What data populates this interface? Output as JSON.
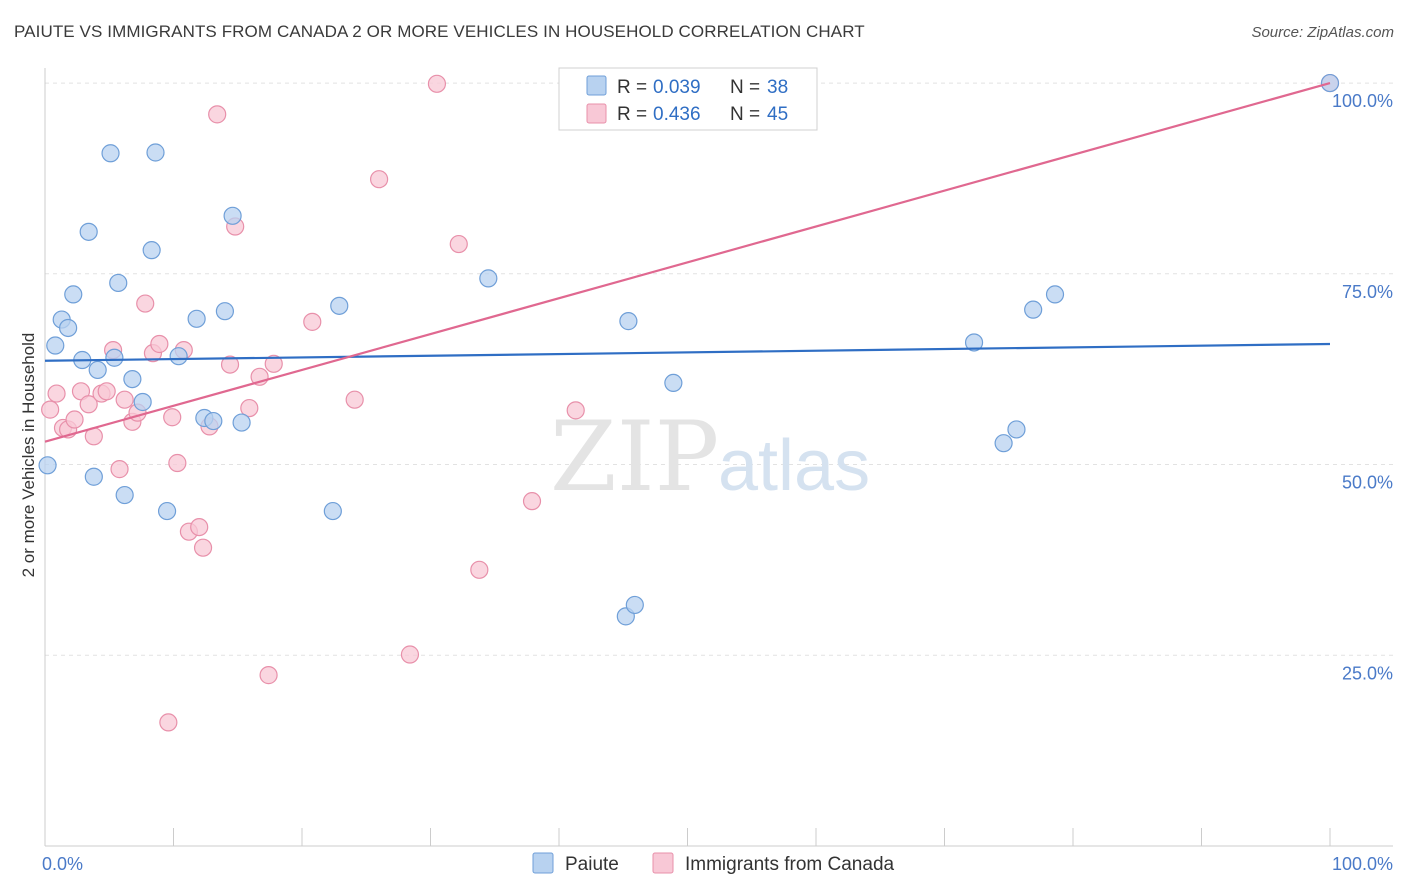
{
  "title": "PAIUTE VS IMMIGRANTS FROM CANADA 2 OR MORE VEHICLES IN HOUSEHOLD CORRELATION CHART",
  "source": "Source: ZipAtlas.com",
  "watermark": {
    "zip": "ZIP",
    "atlas": "atlas"
  },
  "colors": {
    "paiute_fill": "#b8d2f0",
    "paiute_stroke": "#6f9fd8",
    "paiute_line": "#2f6ec4",
    "canada_fill": "#f8c8d6",
    "canada_stroke": "#e890aa",
    "canada_line": "#e06890",
    "tick_label": "#4a7ac8",
    "grid": "#e2e2e2"
  },
  "legend": {
    "rows": [
      {
        "r_label": "R =",
        "r_value": "0.039",
        "n_label": "N =",
        "n_value": "38"
      },
      {
        "r_label": "R =",
        "r_value": "0.436",
        "n_label": "N =",
        "n_value": "45"
      }
    ]
  },
  "chart_data": {
    "type": "scatter",
    "title": "PAIUTE VS IMMIGRANTS FROM CANADA 2 OR MORE VEHICLES IN HOUSEHOLD CORRELATION CHART",
    "xlabel": "",
    "ylabel": "2 or more Vehicles in Household",
    "xlim": [
      0,
      100
    ],
    "ylim": [
      0,
      102.5
    ],
    "x_tick_labels": [
      "0.0%",
      "100.0%"
    ],
    "y_ticks": [
      25,
      50,
      75,
      100
    ],
    "y_tick_labels": [
      "25.0%",
      "50.0%",
      "75.0%",
      "100.0%"
    ],
    "grid": true,
    "legend_position": "top-center",
    "series": [
      {
        "name": "Paiute",
        "trend": {
          "x": [
            0,
            100
          ],
          "y": [
            63.6,
            65.8
          ]
        },
        "points": [
          [
            0.2,
            49.9
          ],
          [
            0.8,
            65.6
          ],
          [
            1.3,
            69.0
          ],
          [
            1.8,
            67.9
          ],
          [
            2.2,
            72.3
          ],
          [
            2.9,
            63.7
          ],
          [
            3.4,
            80.5
          ],
          [
            3.8,
            48.4
          ],
          [
            4.1,
            62.4
          ],
          [
            5.1,
            90.8
          ],
          [
            5.4,
            64.0
          ],
          [
            5.7,
            73.8
          ],
          [
            6.2,
            46.0
          ],
          [
            6.8,
            61.2
          ],
          [
            7.6,
            58.2
          ],
          [
            8.3,
            78.1
          ],
          [
            8.6,
            90.9
          ],
          [
            9.5,
            43.9
          ],
          [
            10.4,
            64.2
          ],
          [
            11.8,
            69.1
          ],
          [
            12.4,
            56.1
          ],
          [
            13.1,
            55.7
          ],
          [
            14.0,
            70.1
          ],
          [
            14.6,
            82.6
          ],
          [
            15.3,
            55.5
          ],
          [
            22.4,
            43.9
          ],
          [
            22.9,
            70.8
          ],
          [
            34.5,
            74.4
          ],
          [
            45.2,
            30.1
          ],
          [
            45.9,
            31.6
          ],
          [
            45.4,
            68.8
          ],
          [
            48.9,
            60.7
          ],
          [
            72.3,
            66.0
          ],
          [
            74.6,
            52.8
          ],
          [
            75.6,
            54.6
          ],
          [
            76.9,
            70.3
          ],
          [
            78.6,
            72.3
          ],
          [
            100.0,
            100.0
          ]
        ]
      },
      {
        "name": "Immigrants from Canada",
        "trend": {
          "x": [
            0,
            100
          ],
          "y": [
            53.0,
            100.0
          ]
        },
        "points": [
          [
            0.4,
            57.2
          ],
          [
            0.9,
            59.3
          ],
          [
            1.4,
            54.8
          ],
          [
            1.8,
            54.6
          ],
          [
            2.3,
            55.9
          ],
          [
            2.8,
            59.6
          ],
          [
            3.4,
            57.9
          ],
          [
            3.8,
            53.7
          ],
          [
            4.4,
            59.3
          ],
          [
            4.8,
            59.6
          ],
          [
            5.3,
            65.0
          ],
          [
            5.8,
            49.4
          ],
          [
            6.2,
            58.5
          ],
          [
            6.8,
            55.6
          ],
          [
            7.2,
            56.8
          ],
          [
            7.8,
            71.1
          ],
          [
            8.4,
            64.6
          ],
          [
            8.9,
            65.8
          ],
          [
            9.6,
            16.2
          ],
          [
            9.9,
            56.2
          ],
          [
            10.3,
            50.2
          ],
          [
            10.8,
            65.0
          ],
          [
            11.2,
            41.2
          ],
          [
            12.0,
            41.8
          ],
          [
            12.3,
            39.1
          ],
          [
            12.8,
            55.0
          ],
          [
            13.4,
            95.9
          ],
          [
            14.4,
            63.1
          ],
          [
            14.8,
            81.2
          ],
          [
            15.9,
            57.4
          ],
          [
            16.7,
            61.5
          ],
          [
            17.4,
            22.4
          ],
          [
            17.8,
            63.2
          ],
          [
            20.8,
            68.7
          ],
          [
            24.1,
            58.5
          ],
          [
            26.0,
            87.4
          ],
          [
            28.4,
            25.1
          ],
          [
            30.5,
            99.9
          ],
          [
            32.2,
            78.9
          ],
          [
            33.8,
            36.2
          ],
          [
            37.9,
            45.2
          ],
          [
            41.3,
            57.1
          ],
          [
            47.1,
            100.0
          ],
          [
            49.5,
            99.9
          ],
          [
            100.0,
            100.0
          ]
        ]
      }
    ]
  }
}
